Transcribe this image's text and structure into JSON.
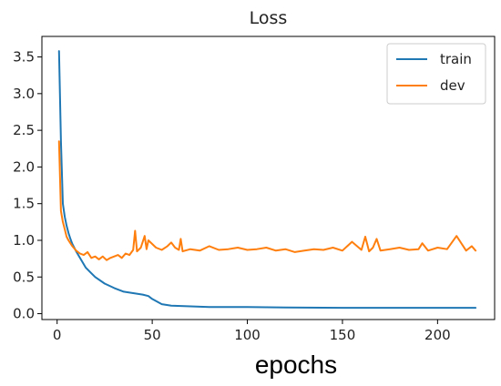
{
  "chart_data": {
    "type": "line",
    "title": "Loss",
    "xlabel": "epochs",
    "ylabel": "",
    "xlim": [
      -8,
      230
    ],
    "ylim": [
      -0.08,
      3.78
    ],
    "xticks": [
      0,
      50,
      100,
      150,
      200
    ],
    "yticks": [
      0.0,
      0.5,
      1.0,
      1.5,
      2.0,
      2.5,
      3.0,
      3.5
    ],
    "xtick_labels": [
      "0",
      "50",
      "100",
      "150",
      "200"
    ],
    "ytick_labels": [
      "0.0",
      "0.5",
      "1.0",
      "1.5",
      "2.0",
      "2.5",
      "3.0",
      "3.5"
    ],
    "grid": false,
    "legend_position": "top-right",
    "series": [
      {
        "name": "train",
        "color": "#1f77b4",
        "x": [
          1,
          2,
          3,
          4,
          5,
          6,
          7,
          8,
          10,
          12,
          15,
          18,
          20,
          25,
          30,
          35,
          40,
          45,
          48,
          50,
          55,
          60,
          70,
          80,
          100,
          120,
          150,
          180,
          200,
          210,
          220
        ],
        "y": [
          3.58,
          2.35,
          1.5,
          1.32,
          1.2,
          1.1,
          1.02,
          0.95,
          0.85,
          0.76,
          0.63,
          0.55,
          0.5,
          0.41,
          0.35,
          0.3,
          0.28,
          0.26,
          0.24,
          0.2,
          0.13,
          0.11,
          0.1,
          0.09,
          0.09,
          0.085,
          0.08,
          0.08,
          0.08,
          0.08,
          0.08
        ]
      },
      {
        "name": "dev",
        "color": "#ff7f0e",
        "x": [
          1,
          2,
          3,
          4,
          5,
          6,
          8,
          10,
          12,
          14,
          16,
          18,
          20,
          22,
          24,
          26,
          28,
          30,
          32,
          34,
          36,
          38,
          40,
          41,
          42,
          44,
          46,
          47,
          48,
          50,
          52,
          55,
          58,
          60,
          62,
          64,
          65,
          66,
          70,
          75,
          80,
          85,
          90,
          95,
          100,
          105,
          110,
          115,
          120,
          125,
          130,
          135,
          140,
          145,
          150,
          155,
          160,
          162,
          164,
          166,
          168,
          170,
          175,
          180,
          185,
          190,
          192,
          195,
          200,
          205,
          210,
          215,
          218,
          220
        ],
        "y": [
          2.35,
          1.4,
          1.25,
          1.15,
          1.05,
          1.0,
          0.92,
          0.86,
          0.82,
          0.8,
          0.84,
          0.76,
          0.78,
          0.74,
          0.78,
          0.73,
          0.76,
          0.78,
          0.8,
          0.76,
          0.82,
          0.8,
          0.87,
          1.13,
          0.85,
          0.9,
          1.06,
          0.88,
          1.0,
          0.95,
          0.9,
          0.87,
          0.92,
          0.97,
          0.9,
          0.87,
          1.02,
          0.85,
          0.88,
          0.86,
          0.92,
          0.87,
          0.88,
          0.9,
          0.87,
          0.88,
          0.9,
          0.86,
          0.88,
          0.84,
          0.86,
          0.88,
          0.87,
          0.9,
          0.86,
          0.98,
          0.87,
          1.05,
          0.85,
          0.9,
          1.02,
          0.86,
          0.88,
          0.9,
          0.87,
          0.88,
          0.96,
          0.86,
          0.9,
          0.88,
          1.06,
          0.86,
          0.92,
          0.86
        ]
      }
    ]
  }
}
